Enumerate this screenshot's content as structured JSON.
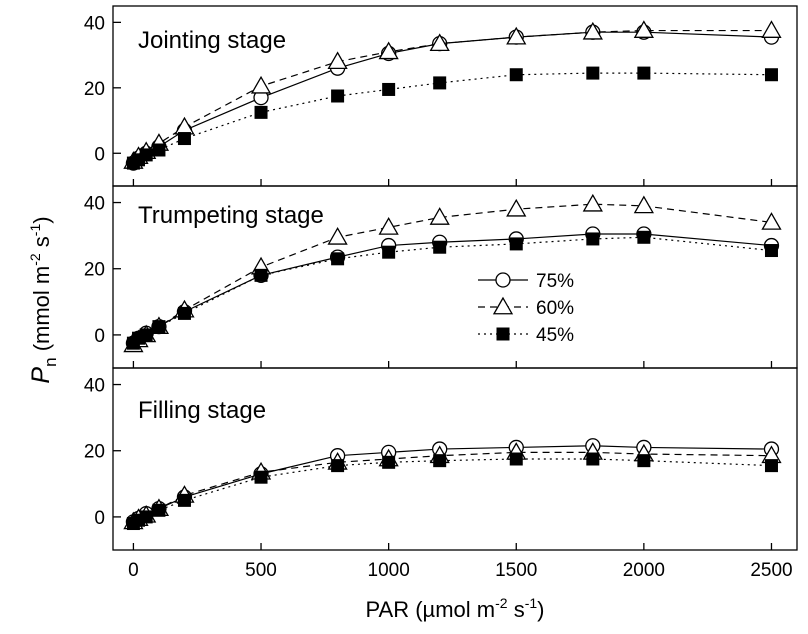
{
  "chart_data": {
    "type": "line",
    "x_axis": {
      "label_main": "PAR (µmol m",
      "label_sup1": "-2",
      "label_mid": " s",
      "label_sup2": "-1",
      "label_end": ")",
      "range": [
        -80,
        2600
      ],
      "ticks": [
        0,
        500,
        1000,
        1500,
        2000,
        2500
      ]
    },
    "y_axis": {
      "label_italic": "P",
      "label_sub": "n",
      "label_main": " (mmol m",
      "label_sup1": "-2",
      "label_mid": " s",
      "label_sup2": "-1",
      "label_end": ")",
      "range": [
        -10,
        45
      ],
      "ticks": [
        0,
        20,
        40
      ]
    },
    "legend": {
      "placement": "inside middle panel, right",
      "entries": [
        {
          "label": "75%",
          "marker": "open-circle",
          "line": "solid"
        },
        {
          "label": "60%",
          "marker": "open-triangle",
          "line": "dashed"
        },
        {
          "label": "45%",
          "marker": "filled-square",
          "line": "dotted"
        }
      ]
    },
    "x": [
      0,
      20,
      50,
      100,
      200,
      500,
      800,
      1000,
      1200,
      1500,
      1800,
      2000,
      2500
    ],
    "panels": [
      {
        "title": "Jointing stage",
        "series": [
          {
            "name": "75%",
            "values": [
              -3,
              -1.5,
              0,
              2,
              7,
              17,
              26,
              30.5,
              33.5,
              35.5,
              37,
              37,
              35.5
            ]
          },
          {
            "name": "60%",
            "values": [
              -2.5,
              -1,
              0.5,
              3,
              8,
              20.5,
              28,
              31,
              33.5,
              35.5,
              37,
              37.5,
              37.5
            ]
          },
          {
            "name": "45%",
            "values": [
              -3,
              -2,
              -0.5,
              1,
              4.5,
              12.5,
              17.5,
              19.5,
              21.5,
              24,
              24.5,
              24.5,
              24
            ]
          }
        ]
      },
      {
        "title": "Trumpeting stage",
        "series": [
          {
            "name": "75%",
            "values": [
              -2.5,
              -1,
              0.5,
              2.5,
              7,
              18,
              23.5,
              27,
              28,
              29,
              30.5,
              30.5,
              27
            ]
          },
          {
            "name": "60%",
            "values": [
              -3,
              -1.5,
              0,
              2.5,
              7.5,
              20.5,
              29.5,
              32.5,
              35.5,
              38,
              39.5,
              39,
              34
            ]
          },
          {
            "name": "45%",
            "values": [
              -2.5,
              -1,
              0,
              2.5,
              6.5,
              18,
              23,
              25,
              26.5,
              27.5,
              29,
              29.5,
              25.5
            ]
          }
        ]
      },
      {
        "title": "Filling stage",
        "series": [
          {
            "name": "75%",
            "values": [
              -1.5,
              -0.5,
              1,
              2.5,
              6,
              13,
              18.5,
              19.5,
              20.5,
              21,
              21.5,
              21,
              20.5
            ]
          },
          {
            "name": "60%",
            "values": [
              -1.5,
              -0.5,
              0.5,
              2.5,
              6.5,
              13.5,
              16.5,
              17.5,
              18.5,
              19.5,
              19.5,
              19,
              18.5
            ]
          },
          {
            "name": "45%",
            "values": [
              -2,
              -1,
              0,
              2,
              5,
              12,
              15.5,
              16.5,
              17,
              17.5,
              17.5,
              17,
              15.5
            ]
          }
        ]
      }
    ]
  }
}
